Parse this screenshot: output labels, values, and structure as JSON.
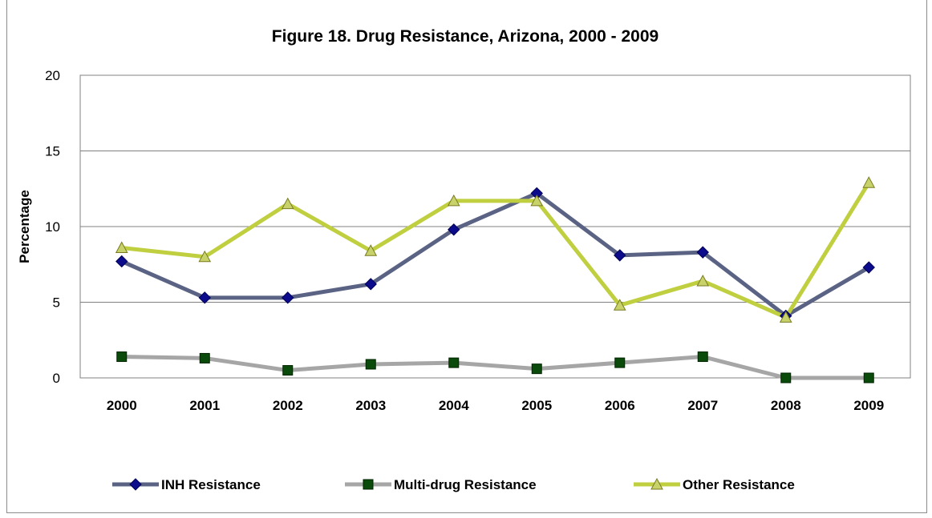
{
  "chart_data": {
    "type": "line",
    "title": "Figure 18.  Drug Resistance, Arizona, 2000 - 2009",
    "xlabel": "",
    "ylabel": "Percentage",
    "categories": [
      "2000",
      "2001",
      "2002",
      "2003",
      "2004",
      "2005",
      "2006",
      "2007",
      "2008",
      "2009"
    ],
    "ylim": [
      0,
      20
    ],
    "yticks": [
      0,
      5,
      10,
      15,
      20
    ],
    "grid": true,
    "legend_position": "bottom",
    "series": [
      {
        "name": "INH Resistance",
        "values": [
          7.7,
          5.3,
          5.3,
          6.2,
          9.8,
          12.2,
          8.1,
          8.3,
          4.1,
          7.3
        ],
        "line_color": "#5a6384",
        "marker": "diamond",
        "marker_color": "#0b0b8c"
      },
      {
        "name": "Multi-drug Resistance",
        "values": [
          1.4,
          1.3,
          0.5,
          0.9,
          1.0,
          0.6,
          1.0,
          1.4,
          0.0,
          0.0
        ],
        "line_color": "#a6a6a6",
        "marker": "square",
        "marker_color": "#0a4a0a"
      },
      {
        "name": "Other Resistance",
        "values": [
          8.6,
          8.0,
          11.5,
          8.4,
          11.7,
          11.7,
          4.8,
          6.4,
          4.0,
          12.9
        ],
        "line_color": "#bfcf3f",
        "marker": "triangle",
        "marker_color": "#c8d26a"
      }
    ]
  }
}
